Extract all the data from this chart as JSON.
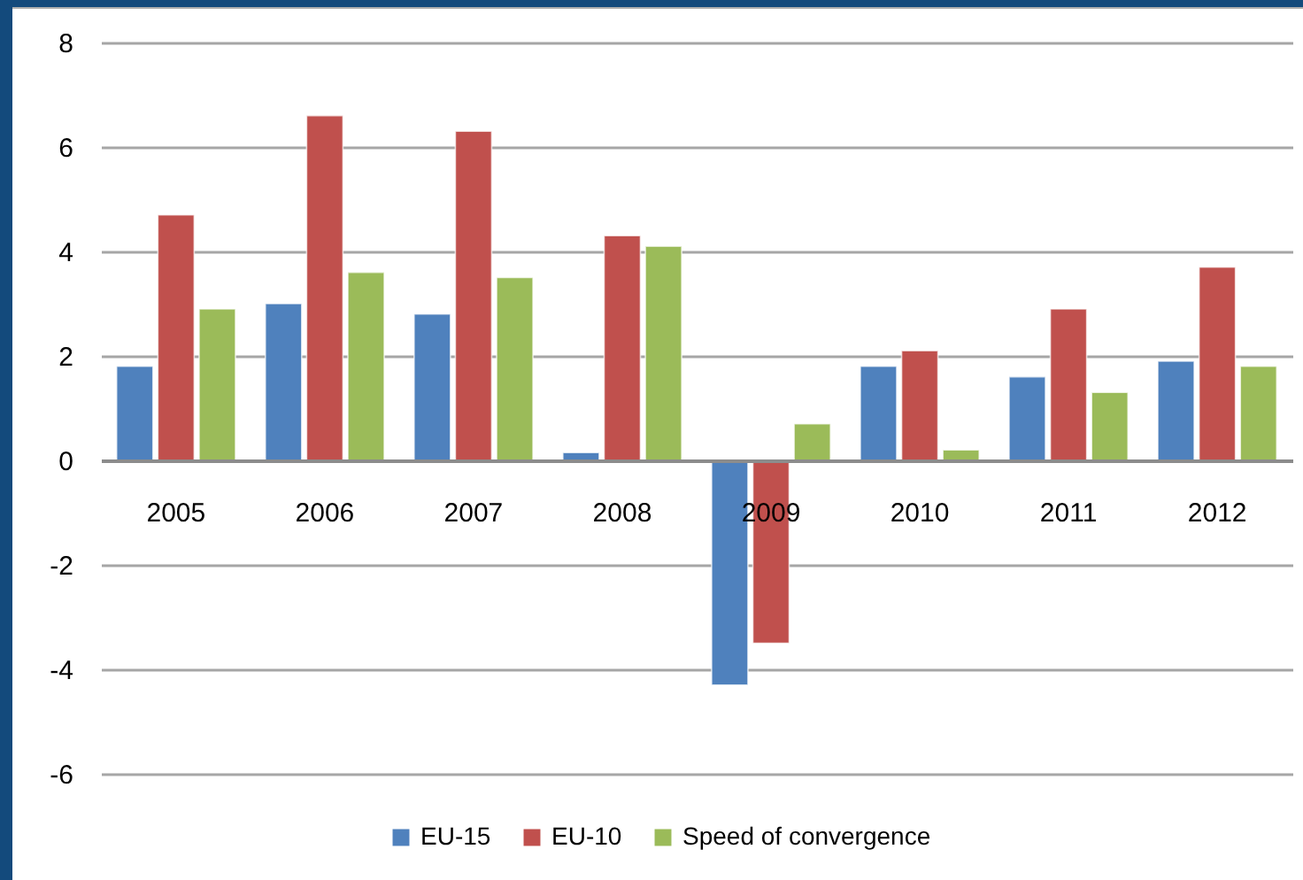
{
  "chart_data": {
    "type": "bar",
    "categories": [
      "2005",
      "2006",
      "2007",
      "2008",
      "2009",
      "2010",
      "2011",
      "2012"
    ],
    "series": [
      {
        "name": "EU-15",
        "color": "#4f81bd",
        "values": [
          1.8,
          3.0,
          2.8,
          0.15,
          -4.3,
          1.8,
          1.6,
          1.9
        ]
      },
      {
        "name": "EU-10",
        "color": "#c0504d",
        "values": [
          4.7,
          6.6,
          6.3,
          4.3,
          -3.5,
          2.1,
          2.9,
          3.7
        ]
      },
      {
        "name": "Speed of convergence",
        "color": "#9bbb59",
        "values": [
          2.9,
          3.6,
          3.5,
          4.1,
          0.7,
          0.2,
          1.3,
          1.8
        ]
      }
    ],
    "ylim": [
      -6,
      8
    ],
    "yticks": [
      -6,
      -4,
      -2,
      0,
      2,
      4,
      6,
      8
    ],
    "grid": "y",
    "legend": "bottom"
  }
}
